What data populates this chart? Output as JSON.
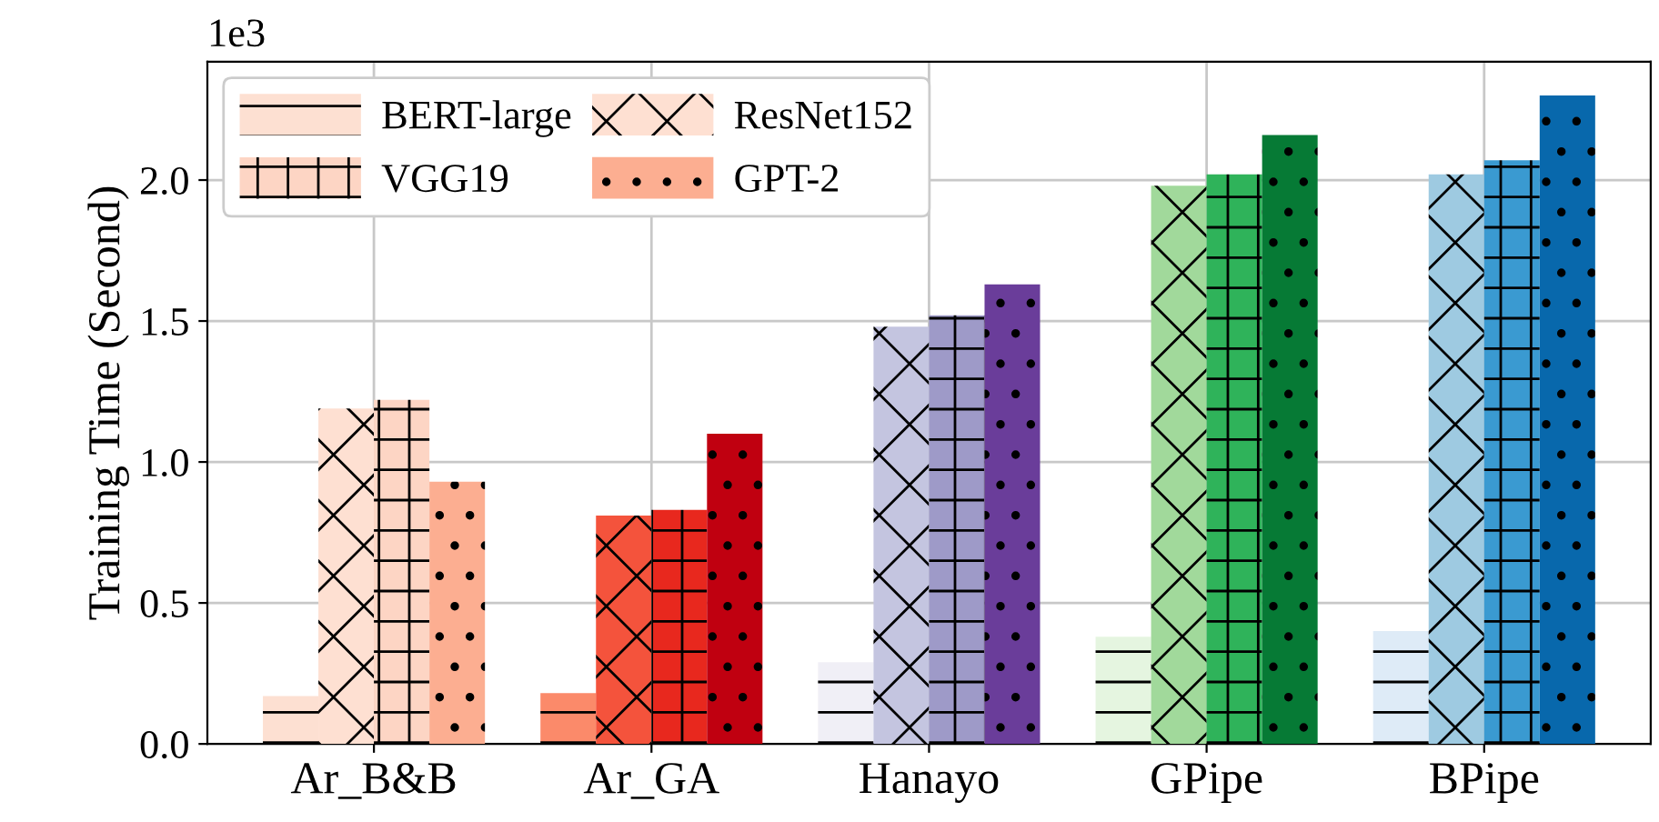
{
  "chart_data": {
    "type": "bar",
    "ylabel": "Training Time (Second)",
    "categories": [
      "Ar_B&B",
      "Ar_GA",
      "Hanayo",
      "GPipe",
      "BPipe"
    ],
    "series": [
      {
        "name": "BERT-large",
        "colors": [
          "#fde0d2",
          "#fb8a6a",
          "#f0eff6",
          "#e5f5e0",
          "#deebf7"
        ],
        "values": [
          0.17,
          0.18,
          0.29,
          0.38,
          0.4
        ]
      },
      {
        "name": "ResNet152",
        "colors": [
          "#fee0d2",
          "#f4533c",
          "#c4c5e0",
          "#a1d99b",
          "#9ecae1"
        ],
        "values": [
          1.19,
          0.81,
          1.48,
          1.98,
          2.02
        ]
      },
      {
        "name": "VGG19",
        "colors": [
          "#fdd5c4",
          "#e8281e",
          "#9e9ac8",
          "#2fb35a",
          "#3a9ad1"
        ],
        "values": [
          1.22,
          0.83,
          1.52,
          2.02,
          2.07
        ]
      },
      {
        "name": "GPT-2",
        "colors": [
          "#fcae91",
          "#c00010",
          "#6a3d9a",
          "#067a35",
          "#0868ac"
        ],
        "values": [
          0.93,
          1.1,
          1.63,
          2.16,
          2.3
        ]
      }
    ],
    "ylim": [
      0,
      2.42
    ],
    "yticks": [
      {
        "value": 0,
        "label": "0.0"
      },
      0.5,
      {
        "value": 1,
        "label": "1.0"
      },
      1.5,
      {
        "value": 2,
        "label": "2.0"
      }
    ],
    "annotations": [
      "1e3"
    ],
    "grid": true,
    "legend": "top left"
  }
}
